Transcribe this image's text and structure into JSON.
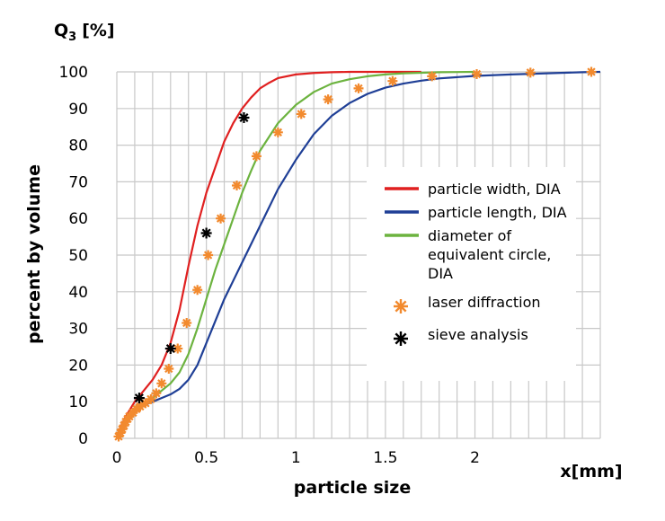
{
  "chart_data": {
    "type": "line",
    "y_quantity": "Q",
    "y_quantity_sub": "3",
    "y_quantity_unit": "[%]",
    "ylabel": "percent by volume",
    "xlabel": "particle size",
    "x_unit_label": "x[mm]",
    "xlim": [
      0,
      2.7
    ],
    "ylim": [
      0,
      100
    ],
    "grid": true,
    "legend_position": "right",
    "x_ticks": [
      0,
      0.5,
      1,
      1.5,
      2
    ],
    "x_tick_labels": [
      "0",
      "0.5",
      "1",
      "1.5",
      "2"
    ],
    "y_ticks": [
      0,
      10,
      20,
      30,
      40,
      50,
      60,
      70,
      80,
      90,
      100
    ],
    "y_tick_labels": [
      "0",
      "10",
      "20",
      "30",
      "40",
      "50",
      "60",
      "70",
      "80",
      "90",
      "100"
    ],
    "series": [
      {
        "name": "particle width, DIA",
        "kind": "line",
        "color": "#e02020",
        "legend_lines": [
          "particle width, DIA"
        ],
        "x": [
          0,
          0.02,
          0.05,
          0.1,
          0.15,
          0.2,
          0.25,
          0.3,
          0.35,
          0.4,
          0.45,
          0.5,
          0.55,
          0.6,
          0.65,
          0.7,
          0.75,
          0.8,
          0.85,
          0.9,
          1.0,
          1.1,
          1.2,
          1.3,
          1.5,
          1.7
        ],
        "y": [
          0,
          3,
          6,
          10,
          13,
          16,
          20,
          26,
          35,
          47,
          58,
          67,
          74,
          81,
          86,
          90,
          93,
          95.5,
          97,
          98.3,
          99.3,
          99.7,
          99.9,
          100,
          100,
          100
        ]
      },
      {
        "name": "particle length, DIA",
        "kind": "line",
        "color": "#1f3f96",
        "legend_lines": [
          "particle length, DIA"
        ],
        "x": [
          0,
          0.02,
          0.05,
          0.1,
          0.15,
          0.2,
          0.25,
          0.3,
          0.35,
          0.4,
          0.45,
          0.5,
          0.55,
          0.6,
          0.65,
          0.7,
          0.75,
          0.8,
          0.9,
          1.0,
          1.1,
          1.2,
          1.3,
          1.4,
          1.5,
          1.6,
          1.7,
          1.8,
          2.0,
          2.2,
          2.4,
          2.6,
          2.7
        ],
        "y": [
          0,
          2,
          4,
          7,
          9,
          10,
          11,
          12,
          13.5,
          16,
          20,
          26,
          32,
          38,
          43,
          48,
          53,
          58,
          68,
          76,
          83,
          88,
          91.5,
          94,
          95.7,
          96.8,
          97.6,
          98.2,
          98.9,
          99.3,
          99.6,
          99.9,
          100
        ]
      },
      {
        "name": "diameter of equivalent circle, DIA",
        "kind": "line",
        "color": "#6cb33f",
        "legend_lines": [
          "diameter of",
          "equivalent circle,",
          "DIA"
        ],
        "x": [
          0,
          0.02,
          0.05,
          0.1,
          0.15,
          0.2,
          0.25,
          0.3,
          0.35,
          0.4,
          0.45,
          0.5,
          0.55,
          0.6,
          0.65,
          0.7,
          0.75,
          0.8,
          0.9,
          1.0,
          1.1,
          1.2,
          1.3,
          1.4,
          1.5,
          1.6,
          1.8,
          2.0
        ],
        "y": [
          0,
          2,
          4,
          7,
          9,
          11,
          13,
          15,
          18,
          23,
          30,
          38,
          46,
          53,
          60,
          67,
          73,
          78.5,
          86,
          91,
          94.5,
          96.8,
          98,
          98.8,
          99.3,
          99.6,
          99.9,
          100
        ]
      },
      {
        "name": "laser diffraction",
        "kind": "markers",
        "color": "#f28a2e",
        "legend_lines": [
          "laser diffraction"
        ],
        "x": [
          0.01,
          0.02,
          0.03,
          0.04,
          0.05,
          0.06,
          0.07,
          0.09,
          0.11,
          0.13,
          0.16,
          0.19,
          0.22,
          0.25,
          0.29,
          0.34,
          0.39,
          0.45,
          0.51,
          0.58,
          0.67,
          0.78,
          0.9,
          1.03,
          1.18,
          1.35,
          1.54,
          1.76,
          2.01,
          2.31,
          2.65
        ],
        "y": [
          0.5,
          1.5,
          2.5,
          3.5,
          4.5,
          5.3,
          6,
          7,
          8,
          8.7,
          9.6,
          10.7,
          12.3,
          15,
          19,
          24.5,
          31.5,
          40.5,
          50,
          60,
          69,
          77,
          83.5,
          88.5,
          92.5,
          95.5,
          97.5,
          98.8,
          99.4,
          99.8,
          100
        ]
      },
      {
        "name": "sieve analysis",
        "kind": "markers",
        "color": "#000000",
        "legend_lines": [
          "sieve analysis"
        ],
        "x": [
          0.125,
          0.3,
          0.5,
          0.71
        ],
        "y": [
          11,
          24.5,
          56,
          87.5
        ]
      }
    ]
  }
}
